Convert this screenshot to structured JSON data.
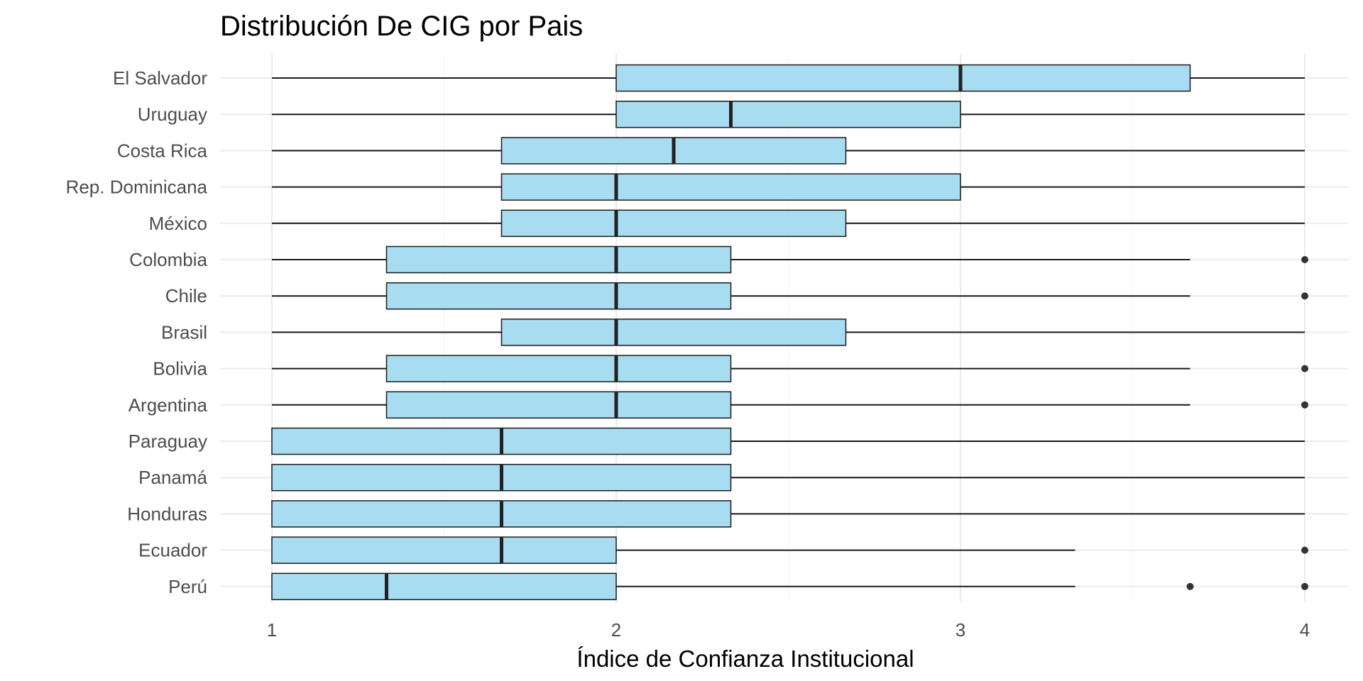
{
  "chart_data": {
    "type": "box",
    "orientation": "horizontal",
    "title": "Distribución De CIG por Pais",
    "xlabel": "Índice de Confianza Institucional",
    "ylabel": "",
    "xlim": [
      0.85,
      4.15
    ],
    "xticks": [
      1,
      2,
      3,
      4
    ],
    "xtick_labels": [
      "1",
      "2",
      "3",
      "4"
    ],
    "grid": true,
    "legend": "none",
    "colors": {
      "box_fill": "#a8dcf0",
      "box_stroke": "#1a1a1a",
      "outlier": "#333333",
      "grid": "#ebebeb"
    },
    "categories": [
      {
        "name": "El Salvador",
        "whisker_low": 1,
        "q1": 2,
        "median": 3,
        "q3": 3.667,
        "whisker_high": 4,
        "outliers": []
      },
      {
        "name": "Uruguay",
        "whisker_low": 1,
        "q1": 2,
        "median": 2.333,
        "q3": 3,
        "whisker_high": 4,
        "outliers": []
      },
      {
        "name": "Costa Rica",
        "whisker_low": 1,
        "q1": 1.667,
        "median": 2.167,
        "q3": 2.667,
        "whisker_high": 4,
        "outliers": []
      },
      {
        "name": "Rep. Dominicana",
        "whisker_low": 1,
        "q1": 1.667,
        "median": 2,
        "q3": 3,
        "whisker_high": 4,
        "outliers": []
      },
      {
        "name": "México",
        "whisker_low": 1,
        "q1": 1.667,
        "median": 2,
        "q3": 2.667,
        "whisker_high": 4,
        "outliers": []
      },
      {
        "name": "Colombia",
        "whisker_low": 1,
        "q1": 1.333,
        "median": 2,
        "q3": 2.333,
        "whisker_high": 3.667,
        "outliers": [
          4
        ]
      },
      {
        "name": "Chile",
        "whisker_low": 1,
        "q1": 1.333,
        "median": 2,
        "q3": 2.333,
        "whisker_high": 3.667,
        "outliers": [
          4
        ]
      },
      {
        "name": "Brasil",
        "whisker_low": 1,
        "q1": 1.667,
        "median": 2,
        "q3": 2.667,
        "whisker_high": 4,
        "outliers": []
      },
      {
        "name": "Bolivia",
        "whisker_low": 1,
        "q1": 1.333,
        "median": 2,
        "q3": 2.333,
        "whisker_high": 3.667,
        "outliers": [
          4
        ]
      },
      {
        "name": "Argentina",
        "whisker_low": 1,
        "q1": 1.333,
        "median": 2,
        "q3": 2.333,
        "whisker_high": 3.667,
        "outliers": [
          4
        ]
      },
      {
        "name": "Paraguay",
        "whisker_low": 1,
        "q1": 1,
        "median": 1.667,
        "q3": 2.333,
        "whisker_high": 4,
        "outliers": []
      },
      {
        "name": "Panamá",
        "whisker_low": 1,
        "q1": 1,
        "median": 1.667,
        "q3": 2.333,
        "whisker_high": 4,
        "outliers": []
      },
      {
        "name": "Honduras",
        "whisker_low": 1,
        "q1": 1,
        "median": 1.667,
        "q3": 2.333,
        "whisker_high": 4,
        "outliers": []
      },
      {
        "name": "Ecuador",
        "whisker_low": 1,
        "q1": 1,
        "median": 1.667,
        "q3": 2,
        "whisker_high": 3.333,
        "outliers": [
          4
        ]
      },
      {
        "name": "Perú",
        "whisker_low": 1,
        "q1": 1,
        "median": 1.333,
        "q3": 2,
        "whisker_high": 3.333,
        "outliers": [
          3.667,
          4
        ]
      }
    ]
  }
}
